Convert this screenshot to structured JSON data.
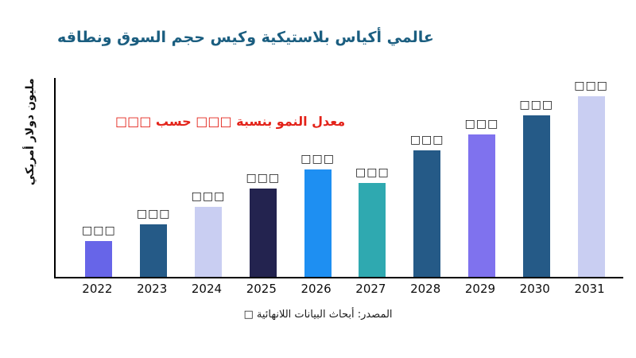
{
  "chart_data": {
    "type": "bar",
    "title": "عالمي أكياس بلاستيكية وكيس حجم السوق ونطاقه",
    "annotation": "معدل النمو بنسبة □□□ حسب □□□",
    "ylabel": "مليون دولار أمريكي",
    "xlabel": "",
    "source": "المصدر: أبحاث البيانات اللانهائية □",
    "categories": [
      "2022",
      "2023",
      "2024",
      "2025",
      "2026",
      "2027",
      "2028",
      "2029",
      "2030",
      "2031"
    ],
    "values": [
      55,
      80,
      107,
      134,
      163,
      143,
      192,
      216,
      245,
      274
    ],
    "data_labels": [
      "□□□",
      "□□□",
      "□□□",
      "□□□",
      "□□□",
      "□□□",
      "□□□",
      "□□□",
      "□□□",
      "□□□"
    ],
    "bar_colors": [
      "#6765e8",
      "#255a87",
      "#c9cef2",
      "#23234f",
      "#1e8ff2",
      "#2fa9b0",
      "#255a87",
      "#7f72ee",
      "#255a87",
      "#c9cef2"
    ],
    "ylim": [
      0,
      300
    ],
    "grid": false,
    "legend": "none",
    "colors": {
      "title": "#1b5e80",
      "annotation": "#e3231a",
      "axis": "#000000",
      "tick_text": "#0d0d0d"
    }
  }
}
